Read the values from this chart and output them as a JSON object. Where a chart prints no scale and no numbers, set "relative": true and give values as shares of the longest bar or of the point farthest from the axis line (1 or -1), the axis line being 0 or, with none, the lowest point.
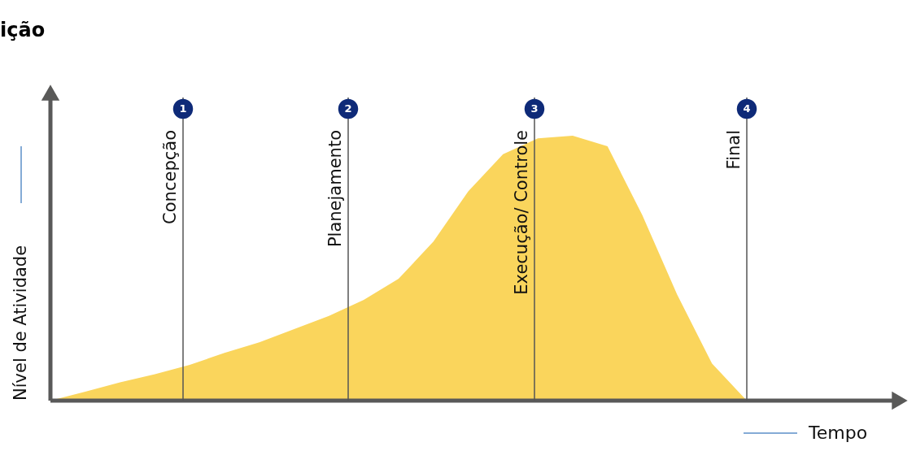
{
  "chart_data": {
    "type": "area",
    "title": "ição",
    "xlabel": "Tempo",
    "ylabel": "Nível de Atividade",
    "relative": true,
    "grid": false,
    "categories": [
      null,
      null,
      null,
      null,
      null,
      null,
      null,
      null,
      null,
      null,
      null,
      null,
      null,
      null,
      null,
      null,
      null,
      null,
      null,
      null,
      null
    ],
    "series": [
      {
        "color": "#fad55c",
        "values": [
          0,
          0.034,
          0.069,
          0.1,
          0.135,
          0.18,
          0.22,
          0.27,
          0.32,
          0.38,
          0.46,
          0.6,
          0.79,
          0.93,
          0.99,
          1.0,
          0.96,
          0.7,
          0.4,
          0.14,
          0
        ]
      }
    ],
    "annotations": [
      "1",
      "Concepção",
      "2",
      "Planejamento",
      "3",
      "Execução/ Controle",
      "4",
      "Final"
    ]
  }
}
